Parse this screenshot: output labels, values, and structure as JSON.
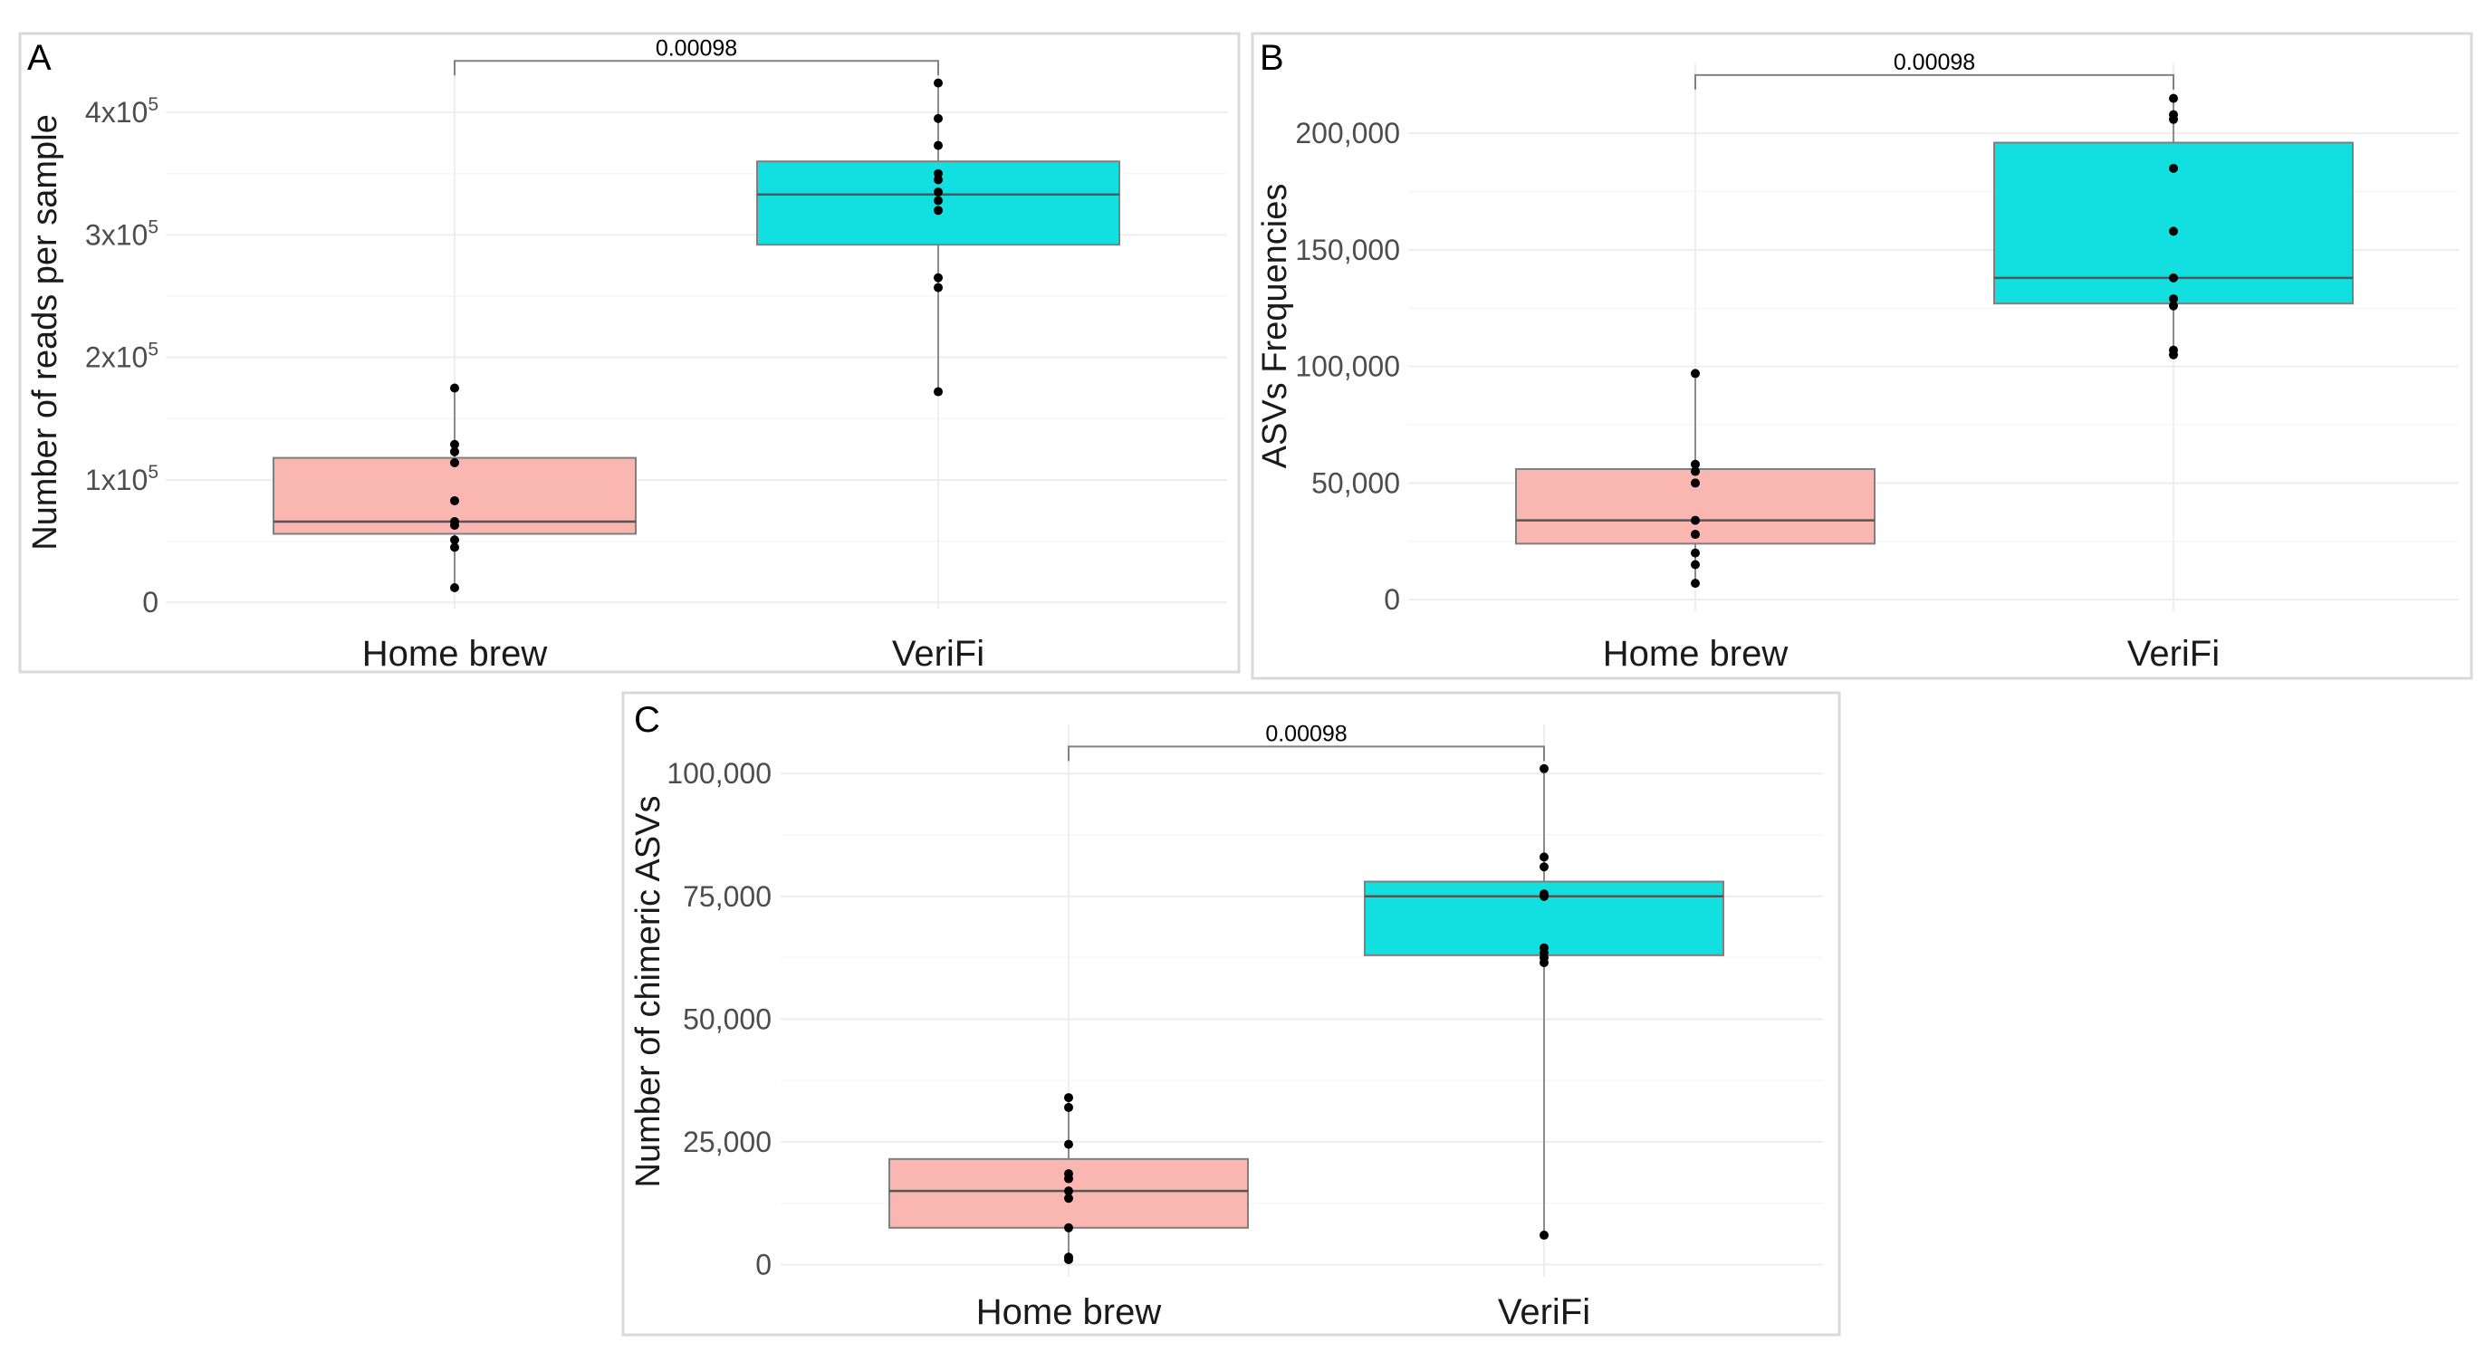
{
  "colors": {
    "home_brew": "#fab6b0",
    "verifi": "#12dfe0"
  },
  "chart_data": [
    {
      "panel": "A",
      "type": "box",
      "ylabel": "Number of reads per sample",
      "categories": [
        "Home brew",
        "VeriFi"
      ],
      "ylim": [
        -5000,
        440000
      ],
      "yticks": [
        0,
        100000,
        200000,
        300000,
        400000
      ],
      "ytick_labels": [
        {
          "base": "0",
          "exp": ""
        },
        {
          "base": "1x10",
          "exp": "5"
        },
        {
          "base": "2x10",
          "exp": "5"
        },
        {
          "base": "3x10",
          "exp": "5"
        },
        {
          "base": "4x10",
          "exp": "5"
        }
      ],
      "significance": {
        "label": "0.00098",
        "y": 442000
      },
      "series": [
        {
          "name": "Home brew",
          "q1": 56000,
          "median": 66000,
          "q3": 118000,
          "whisker_low": 12000,
          "whisker_high": 175000,
          "points": [
            175000,
            129000,
            123000,
            114000,
            83000,
            66000,
            63000,
            51000,
            45000,
            12000
          ]
        },
        {
          "name": "VeriFi",
          "q1": 292000,
          "median": 333000,
          "q3": 360000,
          "whisker_low": 172000,
          "whisker_high": 424000,
          "points": [
            424000,
            395000,
            373000,
            350000,
            345000,
            335000,
            328000,
            320000,
            265000,
            257000,
            172000
          ]
        }
      ]
    },
    {
      "panel": "B",
      "type": "box",
      "ylabel": "ASVs Frequencies",
      "categories": [
        "Home brew",
        "VeriFi"
      ],
      "ylim": [
        -5000,
        230000
      ],
      "yticks": [
        0,
        50000,
        100000,
        150000,
        200000
      ],
      "ytick_labels": [
        {
          "base": "0",
          "exp": ""
        },
        {
          "base": "50,000",
          "exp": ""
        },
        {
          "base": "100,000",
          "exp": ""
        },
        {
          "base": "150,000",
          "exp": ""
        },
        {
          "base": "200,000",
          "exp": ""
        }
      ],
      "significance": {
        "label": "0.00098",
        "y": 225000
      },
      "series": [
        {
          "name": "Home brew",
          "q1": 24000,
          "median": 34000,
          "q3": 56000,
          "whisker_low": 7000,
          "whisker_high": 97000,
          "points": [
            97000,
            58000,
            55000,
            50000,
            34000,
            28000,
            20000,
            15000,
            7000
          ]
        },
        {
          "name": "VeriFi",
          "q1": 127000,
          "median": 138000,
          "q3": 196000,
          "whisker_low": 105000,
          "whisker_high": 215000,
          "points": [
            215000,
            208000,
            206000,
            185000,
            158000,
            138000,
            129000,
            126000,
            107000,
            105000
          ]
        }
      ]
    },
    {
      "panel": "C",
      "type": "box",
      "ylabel": "Number of chimeric ASVs",
      "categories": [
        "Home brew",
        "VeriFi"
      ],
      "ylim": [
        -2500,
        110000
      ],
      "yticks": [
        0,
        25000,
        50000,
        75000,
        100000
      ],
      "ytick_labels": [
        {
          "base": "0",
          "exp": ""
        },
        {
          "base": "25,000",
          "exp": ""
        },
        {
          "base": "50,000",
          "exp": ""
        },
        {
          "base": "75,000",
          "exp": ""
        },
        {
          "base": "100,000",
          "exp": ""
        }
      ],
      "significance": {
        "label": "0.00098",
        "y": 105500
      },
      "series": [
        {
          "name": "Home brew",
          "q1": 7500,
          "median": 15000,
          "q3": 21500,
          "whisker_low": 1000,
          "whisker_high": 34000,
          "points": [
            34000,
            32000,
            24500,
            18500,
            17500,
            15000,
            13500,
            7500,
            1500,
            1000
          ]
        },
        {
          "name": "VeriFi",
          "q1": 63000,
          "median": 75000,
          "q3": 78000,
          "whisker_low": 6000,
          "whisker_high": 101000,
          "points": [
            101000,
            83000,
            81000,
            75500,
            75000,
            64500,
            63500,
            62500,
            61500,
            6000
          ]
        }
      ]
    }
  ]
}
